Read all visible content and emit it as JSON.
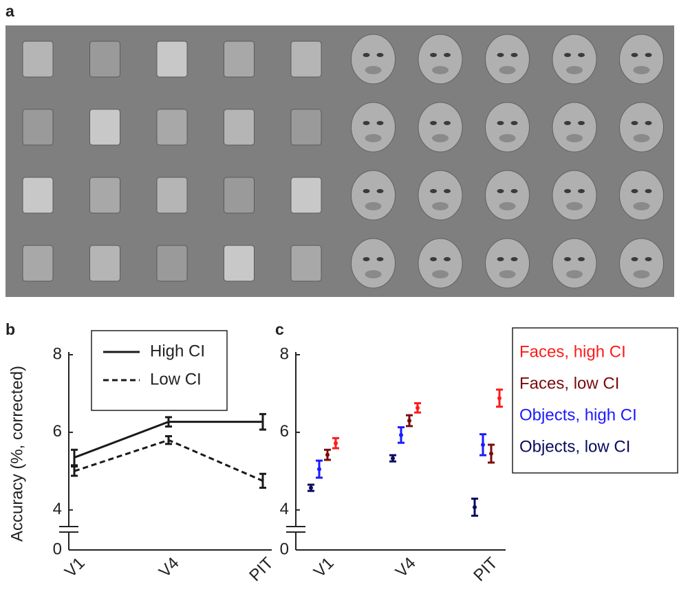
{
  "panel_labels": [
    "a",
    "b",
    "c"
  ],
  "chart_data": [
    {
      "type": "line",
      "ylabel": "Accuracy (%, corrected)",
      "categories": [
        "V1",
        "V4",
        "PIT"
      ],
      "series": [
        {
          "name": "High CI",
          "color": "#1a1a1a",
          "dashed": false,
          "values": [
            5.35,
            6.27,
            6.27
          ],
          "errors": [
            0.2,
            0.12,
            0.2
          ]
        },
        {
          "name": "Low CI",
          "color": "#1a1a1a",
          "dashed": true,
          "values": [
            5.0,
            5.8,
            4.75
          ],
          "errors": [
            0.12,
            0.1,
            0.18
          ]
        }
      ],
      "ylim": [
        0,
        8
      ],
      "yticks": [
        0,
        4,
        6,
        8
      ],
      "ybreak": 3.5,
      "legend": "upper left"
    },
    {
      "type": "errorbar",
      "categories": [
        "V1",
        "V4",
        "PIT"
      ],
      "series": [
        {
          "name": "Faces, high CI",
          "color": "#ff1a1a",
          "values": [
            5.72,
            6.63,
            6.88
          ],
          "errors": [
            0.13,
            0.12,
            0.22
          ]
        },
        {
          "name": "Faces, low CI",
          "color": "#7a0a0a",
          "values": [
            5.42,
            6.3,
            5.45
          ],
          "errors": [
            0.13,
            0.14,
            0.23
          ]
        },
        {
          "name": "Objects, high CI",
          "color": "#1a1aff",
          "values": [
            5.05,
            5.93,
            5.68
          ],
          "errors": [
            0.22,
            0.2,
            0.27
          ]
        },
        {
          "name": "Objects, low CI",
          "color": "#0a0a60",
          "values": [
            4.57,
            5.33,
            4.07
          ],
          "errors": [
            0.08,
            0.08,
            0.22
          ]
        }
      ],
      "ylim": [
        0,
        8
      ],
      "yticks": [
        0,
        4,
        6,
        8
      ],
      "ybreak": 3.5,
      "legend": "right"
    }
  ]
}
